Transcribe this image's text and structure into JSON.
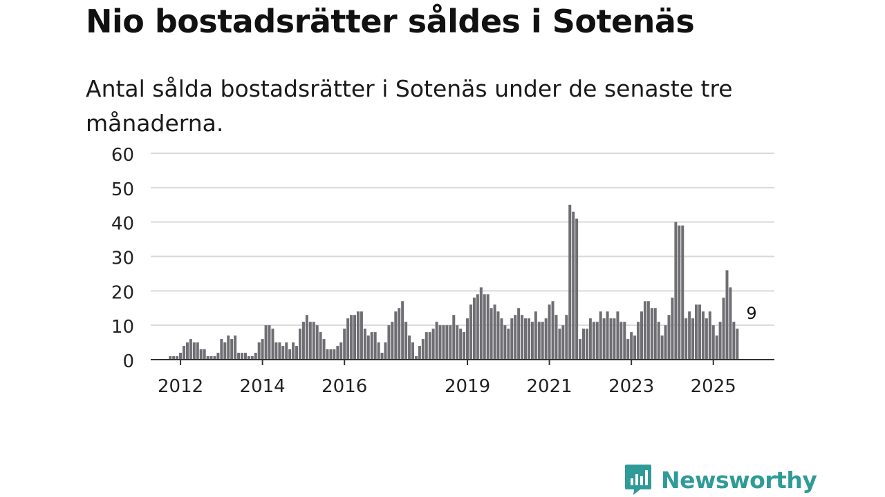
{
  "header": {
    "title": "Nio bostadsrätter såldes i Sotenäs",
    "subtitle": "Antal sålda bostadsrätter i Sotenäs under de senaste tre månaderna."
  },
  "brand": {
    "name": "Newsworthy",
    "color": "#2f9b98"
  },
  "colors": {
    "bar": "#6e6e73",
    "highlight": "#179c97",
    "grid": "#d9d9d9",
    "axis": "#333333"
  },
  "chart_data": {
    "type": "bar",
    "title": "Nio bostadsrätter såldes i Sotenäs",
    "xlabel": "",
    "ylabel": "",
    "ylim": [
      0,
      60
    ],
    "yticks": [
      0,
      10,
      20,
      30,
      40,
      50,
      60
    ],
    "x_start": "2011-01",
    "x_tick_labels": [
      {
        "label": "2012",
        "month_index": 12
      },
      {
        "label": "2014",
        "month_index": 36
      },
      {
        "label": "2016",
        "month_index": 60
      },
      {
        "label": "2019",
        "month_index": 96
      },
      {
        "label": "2021",
        "month_index": 120
      },
      {
        "label": "2023",
        "month_index": 144
      },
      {
        "label": "2025",
        "month_index": 168
      }
    ],
    "values": [
      0,
      0,
      0,
      0,
      0,
      0,
      0,
      0,
      0,
      1,
      1,
      1,
      2,
      4,
      5,
      6,
      5,
      5,
      3,
      3,
      1,
      1,
      1,
      2,
      6,
      5,
      7,
      6,
      7,
      2,
      2,
      2,
      1,
      1,
      2,
      5,
      6,
      10,
      10,
      9,
      5,
      5,
      4,
      5,
      3,
      5,
      4,
      9,
      11,
      13,
      11,
      11,
      10,
      8,
      6,
      3,
      3,
      3,
      4,
      5,
      9,
      12,
      13,
      13,
      14,
      14,
      9,
      7,
      8,
      8,
      5,
      2,
      5,
      10,
      11,
      14,
      15,
      17,
      11,
      7,
      5,
      1,
      4,
      6,
      8,
      8,
      9,
      11,
      10,
      10,
      10,
      10,
      13,
      10,
      9,
      8,
      12,
      16,
      18,
      19,
      21,
      19,
      19,
      15,
      16,
      14,
      12,
      10,
      9,
      12,
      13,
      15,
      13,
      12,
      12,
      11,
      14,
      11,
      11,
      12,
      16,
      17,
      13,
      9,
      10,
      13,
      45,
      43,
      41,
      6,
      9,
      9,
      12,
      11,
      11,
      14,
      12,
      14,
      12,
      12,
      14,
      11,
      11,
      6,
      8,
      7,
      11,
      14,
      17,
      17,
      15,
      15,
      11,
      7,
      10,
      13,
      18,
      40,
      39,
      39,
      12,
      14,
      12,
      16,
      16,
      14,
      12,
      14,
      10,
      7,
      11,
      18,
      26,
      21,
      11,
      9
    ],
    "highlight": {
      "index": 179,
      "value": 9,
      "label": "9"
    }
  }
}
